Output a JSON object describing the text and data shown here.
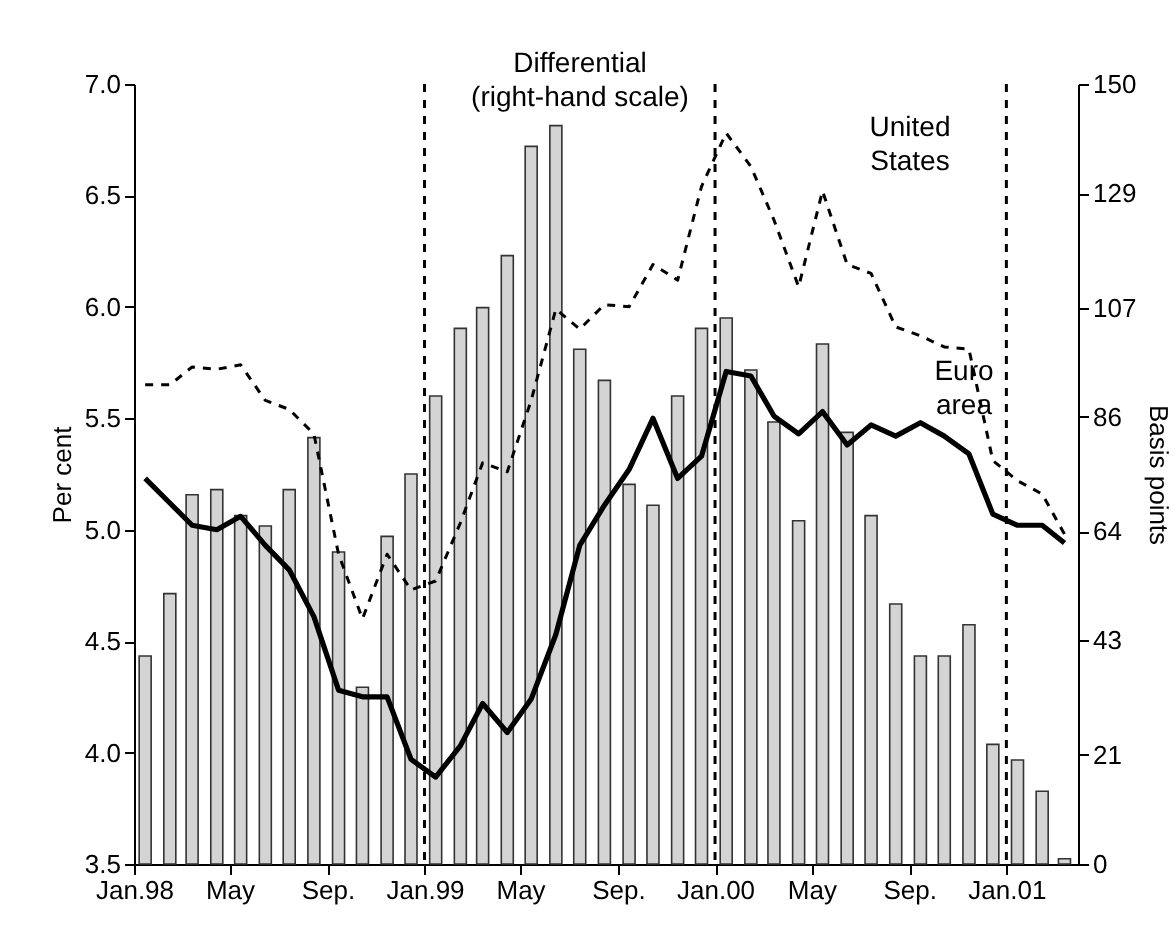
{
  "chart_data": {
    "type": "bar",
    "xlabel": null,
    "ylabel": "Per cent",
    "y2label": "Basis points",
    "x": [
      "1998-01-15",
      "1998-02-15",
      "1998-03-15",
      "1998-04-15",
      "1998-05-15",
      "1998-06-15",
      "1998-07-15",
      "1998-08-15",
      "1998-09-15",
      "1998-10-15",
      "1998-11-15",
      "1998-12-15",
      "1999-01-15",
      "1999-02-15",
      "1999-03-15",
      "1999-04-15",
      "1999-05-15",
      "1999-06-15",
      "1999-07-15",
      "1999-08-15",
      "1999-09-15",
      "1999-10-15",
      "1999-11-15",
      "1999-12-15",
      "2000-01-15",
      "2000-02-15",
      "2000-03-15",
      "2000-04-15",
      "2000-05-15",
      "2000-06-15",
      "2000-07-15",
      "2000-08-15",
      "2000-09-15",
      "2000-10-15",
      "2000-11-15",
      "2000-12-15",
      "2001-01-15",
      "2001-02-15",
      "2001-03-15"
    ],
    "xlim": [
      "1998-01-01",
      "2001-04-01"
    ],
    "xticks": [
      {
        "value": "1998-01-01",
        "label": "Jan.98"
      },
      {
        "value": "1998-05-01",
        "label": "May"
      },
      {
        "value": "1998-09-01",
        "label": "Sep."
      },
      {
        "value": "1999-01-01",
        "label": "Jan.99"
      },
      {
        "value": "1999-05-01",
        "label": "May"
      },
      {
        "value": "1999-09-01",
        "label": "Sep."
      },
      {
        "value": "2000-01-01",
        "label": "Jan.00"
      },
      {
        "value": "2000-05-01",
        "label": "May"
      },
      {
        "value": "2000-09-01",
        "label": "Sep."
      },
      {
        "value": "2001-01-01",
        "label": "Jan.01"
      }
    ],
    "ylim": [
      3.5,
      7.0
    ],
    "yticks": [
      3.5,
      {
        "value": 4,
        "label": "4.0"
      },
      4.5,
      {
        "value": 5,
        "label": "5.0"
      },
      5.5,
      {
        "value": 6,
        "label": "6.0"
      },
      6.5,
      {
        "value": 7,
        "label": "7.0"
      }
    ],
    "y2lim": [
      0,
      150
    ],
    "y2ticks": [
      0,
      21,
      43,
      64,
      86,
      107,
      129,
      150
    ],
    "series": [
      {
        "name": "Differential (right-hand scale)",
        "axis": "y2",
        "color": "#d4d4d4",
        "values": [
          40,
          52,
          71,
          72,
          67,
          65,
          72,
          82,
          60,
          34,
          63,
          75,
          90,
          103,
          107,
          117,
          138,
          142,
          99,
          93,
          73,
          69,
          90,
          103,
          105,
          95,
          85,
          66,
          100,
          83,
          67,
          50,
          40,
          40,
          46,
          23,
          20,
          14,
          1
        ]
      },
      {
        "name": "United States",
        "type": "line",
        "axis": "y",
        "color": "#000000",
        "line_style": "dashed",
        "values": [
          5.65,
          5.65,
          5.73,
          5.72,
          5.74,
          5.58,
          5.54,
          5.43,
          4.89,
          4.6,
          4.89,
          4.73,
          4.77,
          5.03,
          5.3,
          5.26,
          5.58,
          5.99,
          5.9,
          6.01,
          6.0,
          6.19,
          6.12,
          6.54,
          6.78,
          6.63,
          6.39,
          6.09,
          6.52,
          6.19,
          6.15,
          5.91,
          5.87,
          5.82,
          5.81,
          5.31,
          5.22,
          5.16,
          4.98
        ]
      },
      {
        "name": "Euro area",
        "type": "line",
        "axis": "y",
        "color": "#000000",
        "line_style": "solid",
        "values": [
          5.23,
          5.12,
          5.02,
          5.0,
          5.06,
          4.93,
          4.82,
          4.61,
          4.28,
          4.25,
          4.25,
          3.97,
          3.89,
          4.03,
          4.22,
          4.09,
          4.24,
          4.53,
          4.93,
          5.11,
          5.27,
          5.5,
          5.23,
          5.33,
          5.71,
          5.69,
          5.51,
          5.43,
          5.53,
          5.38,
          5.47,
          5.42,
          5.48,
          5.42,
          5.34,
          5.07,
          5.02,
          5.02,
          4.94
        ]
      }
    ],
    "ref_lines": [
      {
        "axis": "x",
        "value": "1999-01-01",
        "color": "#000000",
        "line_style": "dashed"
      },
      {
        "axis": "x",
        "value": "2000-01-01",
        "color": "#000000",
        "line_style": "dashed"
      },
      {
        "axis": "x",
        "value": "2001-01-01",
        "color": "#000000",
        "line_style": "dashed"
      }
    ],
    "grid": false,
    "marker": "none"
  }
}
